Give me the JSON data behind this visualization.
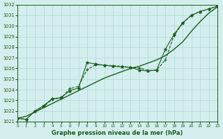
{
  "xlabel": "Graphe pression niveau de la mer (hPa)",
  "background_color": "#d4eeee",
  "grid_color": "#b0d8d8",
  "line_color": "#1a5c1a",
  "x_min": 0,
  "x_max": 23,
  "y_min": 1021,
  "y_max": 1032,
  "x_ticks": [
    0,
    1,
    2,
    3,
    4,
    5,
    6,
    7,
    8,
    9,
    10,
    11,
    12,
    13,
    14,
    15,
    16,
    17,
    18,
    19,
    20,
    21,
    22,
    23
  ],
  "y_ticks": [
    1021,
    1022,
    1023,
    1024,
    1025,
    1026,
    1027,
    1028,
    1029,
    1030,
    1031,
    1032
  ],
  "series": [
    {
      "x": [
        0,
        1,
        2,
        3,
        4,
        5,
        6,
        7,
        8,
        9,
        10,
        11,
        12,
        13,
        14,
        15,
        16,
        17,
        18,
        19,
        20,
        21,
        22,
        23
      ],
      "y": [
        1021.3,
        1021.5,
        1021.9,
        1022.3,
        1022.7,
        1023.1,
        1023.5,
        1023.9,
        1024.3,
        1024.7,
        1025.1,
        1025.4,
        1025.7,
        1026.0,
        1026.2,
        1026.5,
        1026.8,
        1027.2,
        1027.8,
        1028.5,
        1029.5,
        1030.4,
        1031.2,
        1031.8
      ],
      "linestyle": "-",
      "marker": null,
      "linewidth": 1.0
    },
    {
      "x": [
        0,
        1,
        2,
        3,
        4,
        5,
        6,
        7,
        8,
        9,
        10,
        11,
        12,
        13,
        14,
        15,
        16,
        17,
        18,
        19,
        20,
        21,
        22,
        23
      ],
      "y": [
        1021.3,
        1021.2,
        1022.0,
        1022.4,
        1023.1,
        1023.2,
        1024.1,
        1024.3,
        1025.9,
        1026.35,
        1026.3,
        1026.25,
        1026.2,
        1026.1,
        1026.05,
        1025.8,
        1025.85,
        1026.8,
        1029.1,
        1030.25,
        1031.0,
        1031.35,
        1031.6,
        1031.85
      ],
      "linestyle": "--",
      "marker": "+",
      "linewidth": 0.8
    },
    {
      "x": [
        0,
        1,
        2,
        3,
        4,
        5,
        6,
        7,
        8,
        9,
        10,
        11,
        12,
        13,
        14,
        15,
        16,
        17,
        18,
        19,
        20,
        21,
        22,
        23
      ],
      "y": [
        1021.3,
        1021.2,
        1022.0,
        1022.5,
        1023.15,
        1023.25,
        1023.9,
        1024.15,
        1026.55,
        1026.4,
        1026.3,
        1026.2,
        1026.15,
        1026.1,
        1025.85,
        1025.75,
        1025.85,
        1027.8,
        1029.2,
        1030.3,
        1031.0,
        1031.35,
        1031.6,
        1031.85
      ],
      "linestyle": "-",
      "marker": "*",
      "linewidth": 0.8
    }
  ]
}
